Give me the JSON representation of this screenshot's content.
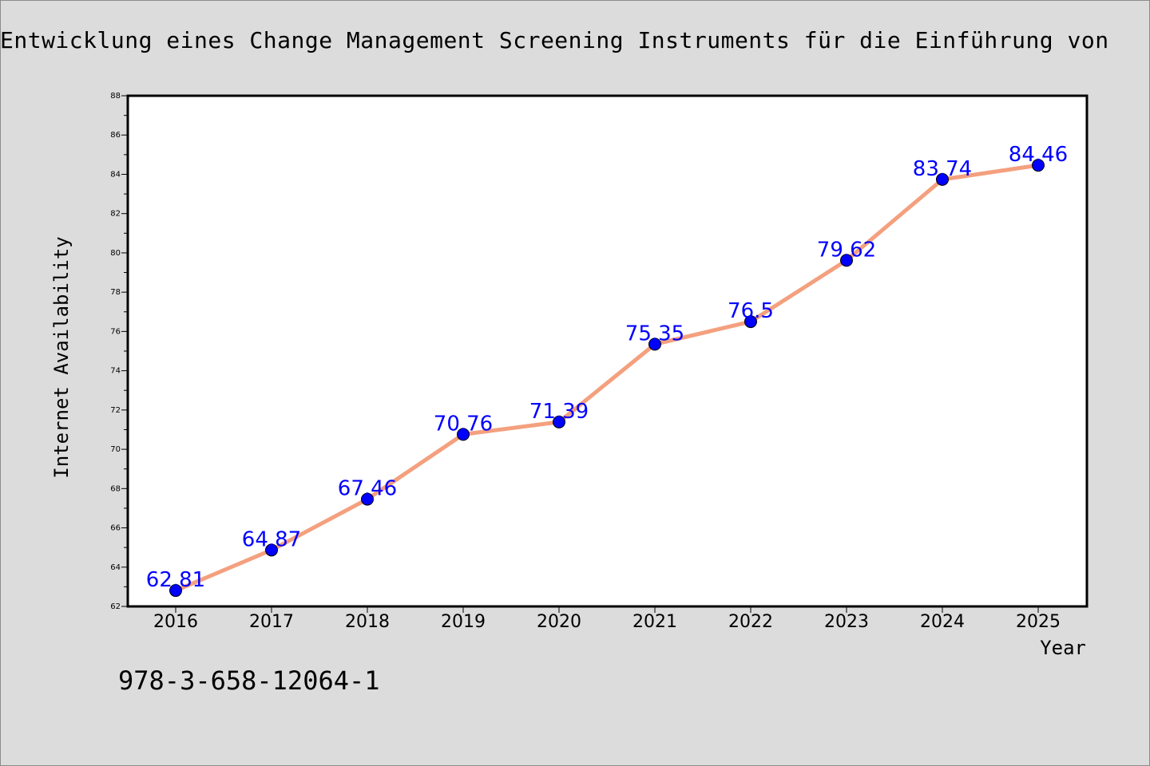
{
  "title": "Entwicklung eines Change Management Screening Instruments für die Einführung von",
  "footnote": "978-3-658-12064-1",
  "colors": {
    "background": "#dcdcdc",
    "plot_background": "#ffffff",
    "line": "#f4a07e",
    "marker": "#0000ff",
    "data_label": "#0000ff"
  },
  "chart_data": {
    "type": "line",
    "xlabel": "Year",
    "ylabel": "Internet Availability",
    "categories": [
      "2016",
      "2017",
      "2018",
      "2019",
      "2020",
      "2021",
      "2022",
      "2023",
      "2024",
      "2025"
    ],
    "series": [
      {
        "values": [
          62.81,
          64.87,
          67.46,
          70.76,
          71.39,
          75.35,
          76.5,
          79.62,
          83.74,
          84.46
        ],
        "labels": [
          "62.81",
          "64.87",
          "67.46",
          "70.76",
          "71.39",
          "75.35",
          "76.5",
          "79.62",
          "83.74",
          "84.46"
        ]
      }
    ],
    "ylim": [
      62,
      88
    ],
    "yticks": [
      "62",
      "64",
      "66",
      "68",
      "70",
      "72",
      "74",
      "76",
      "78",
      "80",
      "82",
      "84",
      "86",
      "88"
    ],
    "grid": false,
    "legend": "none"
  }
}
